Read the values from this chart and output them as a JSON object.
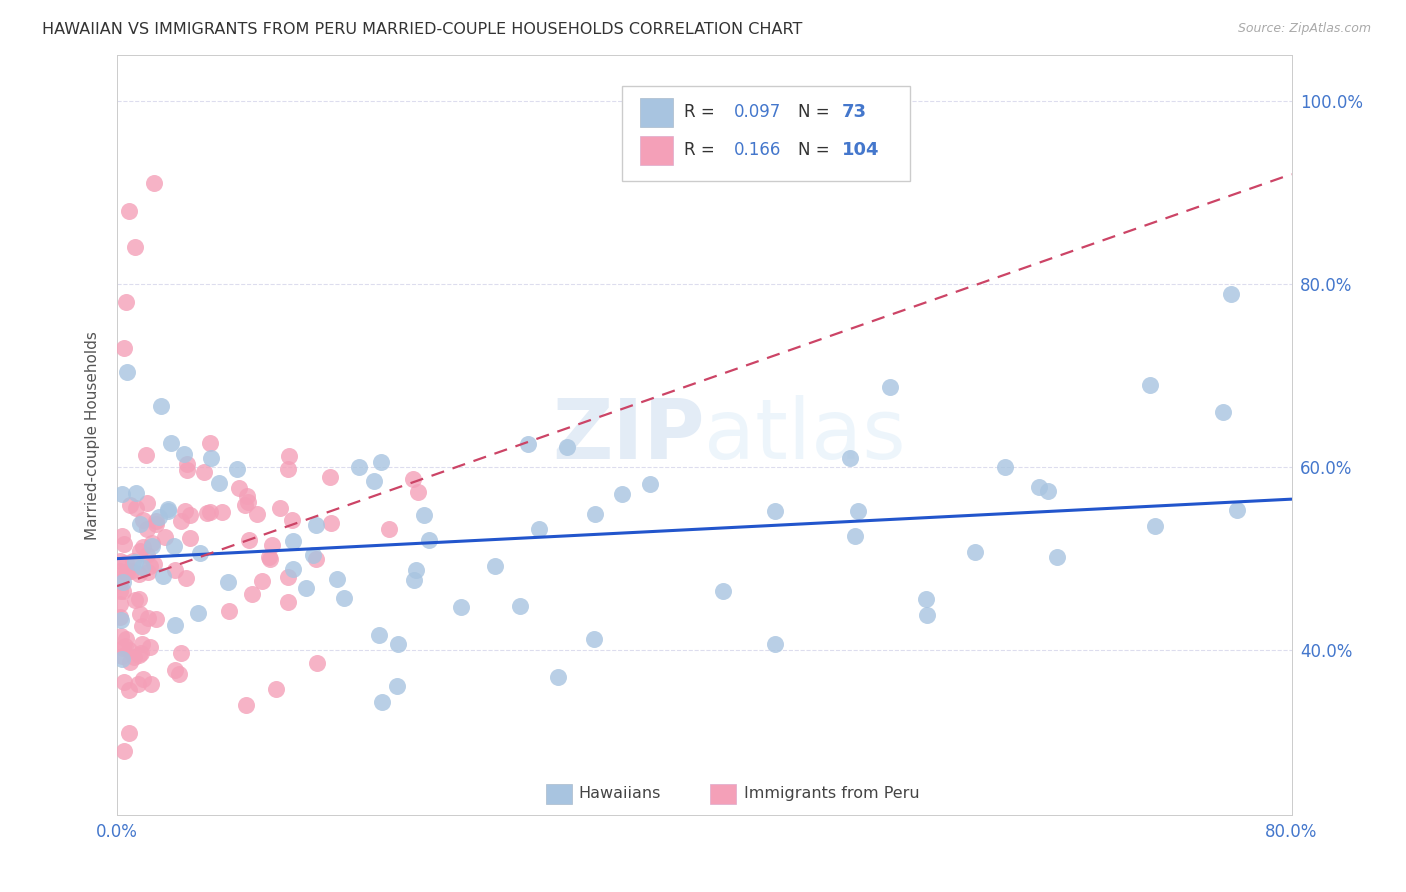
{
  "title": "HAWAIIAN VS IMMIGRANTS FROM PERU MARRIED-COUPLE HOUSEHOLDS CORRELATION CHART",
  "source": "Source: ZipAtlas.com",
  "ylabel": "Married-couple Households",
  "xmin": 0.0,
  "xmax": 0.8,
  "ymin": 0.22,
  "ymax": 1.05,
  "yticks": [
    0.4,
    0.6,
    0.8,
    1.0
  ],
  "ytick_labels": [
    "40.0%",
    "60.0%",
    "80.0%",
    "100.0%"
  ],
  "xticks": [
    0.0,
    0.1,
    0.2,
    0.3,
    0.4,
    0.5,
    0.6,
    0.7,
    0.8
  ],
  "xtick_labels": [
    "0.0%",
    "",
    "",
    "",
    "",
    "",
    "",
    "",
    "80.0%"
  ],
  "legend_hawaiians_R": "0.097",
  "legend_hawaiians_N": "73",
  "legend_peru_R": "0.166",
  "legend_peru_N": "104",
  "hawaiians_color": "#a8c4e0",
  "peru_color": "#f4a0b8",
  "trendline_hawaiians_color": "#2255cc",
  "trendline_peru_color": "#cc4466",
  "watermark": "ZIPatlas",
  "axis_color": "#4477cc",
  "legend_R_color": "#333333",
  "legend_val_color": "#4477cc",
  "trendline_h_x0": 0.0,
  "trendline_h_y0": 0.5,
  "trendline_h_x1": 0.8,
  "trendline_h_y1": 0.565,
  "trendline_p_x0": 0.0,
  "trendline_p_y0": 0.47,
  "trendline_p_x1": 0.8,
  "trendline_p_y1": 0.92
}
